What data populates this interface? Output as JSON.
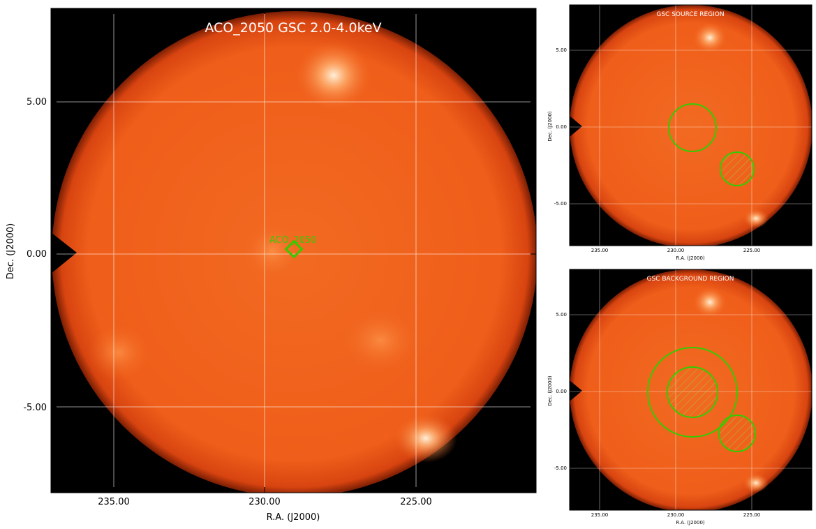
{
  "main": {
    "title": "ACO_2050 GSC 2.0-4.0keV",
    "source_label": "ACO_2050",
    "xlabel": "R.A. (J2000)",
    "ylabel": "Dec. (J2000)",
    "xticks": [
      "235.00",
      "230.00",
      "225.00"
    ],
    "yticks": [
      "5.00",
      "0.00",
      "-5.00"
    ]
  },
  "source_panel": {
    "title": "GSC SOURCE REGION",
    "xlabel": "R.A. (J2000)",
    "ylabel": "Dec. (J2000)",
    "xticks": [
      "235.00",
      "230.00",
      "225.00"
    ],
    "yticks": [
      "5.00",
      "0.00",
      "-5.00"
    ]
  },
  "background_panel": {
    "title": "GSC BACKGROUND REGION",
    "xlabel": "R.A. (J2000)",
    "ylabel": "Dec. (J2000)",
    "xticks": [
      "235.00",
      "230.00",
      "225.00"
    ],
    "yticks": [
      "5.00",
      "0.00",
      "-5.00"
    ]
  },
  "colors": {
    "disk": "#f0601c",
    "background": "#000000",
    "region": "#33cc00",
    "grid": "#ffffff"
  }
}
